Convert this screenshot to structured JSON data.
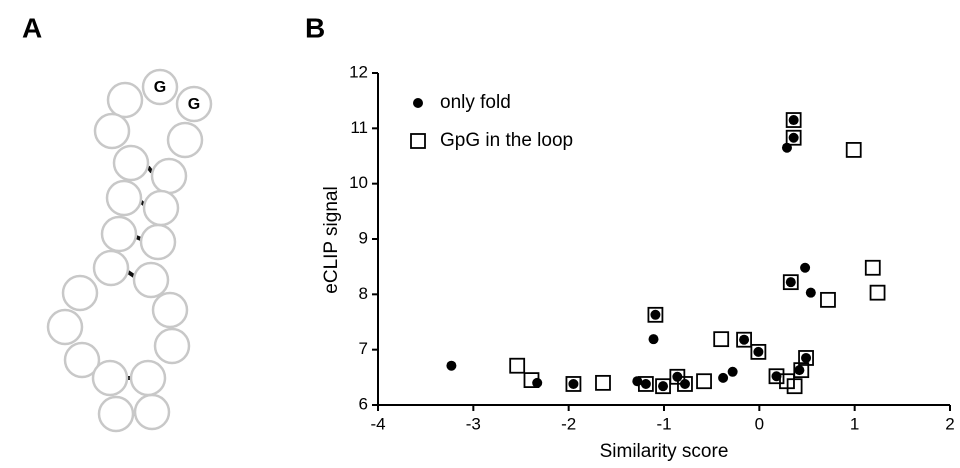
{
  "panels": {
    "a": "A",
    "b": "B"
  },
  "diagram": {
    "nodes": [
      "G",
      "G"
    ]
  },
  "chart_data": {
    "type": "scatter",
    "xlabel": "Similarity score",
    "ylabel": "eCLIP signal",
    "xlim": [
      -4,
      2
    ],
    "xticks": [
      -4,
      -3,
      -2,
      -1,
      0,
      1,
      2
    ],
    "ylim": [
      6,
      12
    ],
    "yticks": [
      6,
      7,
      8,
      9,
      10,
      11,
      12
    ],
    "legend": "upper left",
    "series": [
      {
        "name": "only fold",
        "color": "#000000",
        "marker": "circle",
        "x": [
          -3.23,
          -2.33,
          -1.95,
          -1.28,
          -1.19,
          -1.11,
          -1.09,
          -1.01,
          -0.86,
          -0.78,
          -0.38,
          -0.28,
          -0.16,
          -0.01,
          0.18,
          0.29,
          0.33,
          0.36,
          0.36,
          0.42,
          0.48,
          0.49,
          0.54
        ],
        "values": [
          6.71,
          6.4,
          6.38,
          6.43,
          6.38,
          7.19,
          7.63,
          6.34,
          6.51,
          6.38,
          6.49,
          6.6,
          7.18,
          6.96,
          6.52,
          10.65,
          8.22,
          11.15,
          10.83,
          6.63,
          8.48,
          6.85,
          8.03
        ]
      },
      {
        "name": "GpG in the loop",
        "color": "#000000",
        "marker": "square",
        "x": [
          -2.54,
          -2.39,
          -1.95,
          -1.64,
          -1.19,
          -1.09,
          -1.01,
          -0.86,
          -0.78,
          -0.58,
          -0.4,
          -0.16,
          -0.01,
          0.18,
          0.29,
          0.33,
          0.36,
          0.36,
          0.37,
          0.44,
          0.49,
          0.72,
          0.99,
          1.19,
          1.24
        ],
        "values": [
          6.71,
          6.45,
          6.38,
          6.4,
          6.38,
          7.63,
          6.34,
          6.51,
          6.38,
          6.43,
          7.19,
          7.18,
          6.96,
          6.52,
          6.43,
          8.22,
          10.83,
          11.15,
          6.34,
          6.63,
          6.85,
          7.9,
          10.61,
          8.48,
          8.03
        ]
      }
    ]
  }
}
